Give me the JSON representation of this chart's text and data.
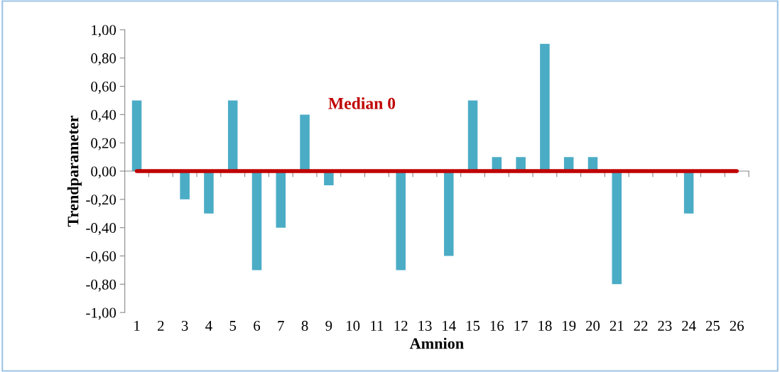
{
  "chart_data": {
    "type": "bar",
    "xlabel": "Amnion",
    "ylabel": "Trendparameter",
    "categories": [
      "1",
      "2",
      "3",
      "4",
      "5",
      "6",
      "7",
      "8",
      "9",
      "10",
      "11",
      "12",
      "13",
      "14",
      "15",
      "16",
      "17",
      "18",
      "19",
      "20",
      "21",
      "22",
      "23",
      "24",
      "25",
      "26"
    ],
    "values": [
      0.5,
      0,
      -0.2,
      -0.3,
      0.5,
      -0.7,
      -0.4,
      0.4,
      -0.1,
      0,
      0,
      -0.7,
      0,
      -0.6,
      0.5,
      0.1,
      0.1,
      0.9,
      0.1,
      0.1,
      -0.8,
      0,
      0,
      -0.3,
      0,
      0
    ],
    "color": "#4bacc6",
    "ylim": [
      -1,
      1
    ],
    "yticks": [
      {
        "value": -1,
        "label": "-1,00"
      },
      {
        "value": -0.8,
        "label": "-0,80"
      },
      {
        "value": -0.6,
        "label": "-0,60"
      },
      {
        "value": -0.4,
        "label": "-0,40"
      },
      {
        "value": -0.2,
        "label": "-0,20"
      },
      {
        "value": 0,
        "label": "0,00"
      },
      {
        "value": 0.2,
        "label": "0,20"
      },
      {
        "value": 0.4,
        "label": "0,40"
      },
      {
        "value": 0.6,
        "label": "0,60"
      },
      {
        "value": 0.8,
        "label": "0,80"
      },
      {
        "value": 1,
        "label": "1,00"
      }
    ],
    "ref_lines": [
      {
        "axis": "y",
        "value": 0,
        "label": "Median 0",
        "color": "#c00000"
      }
    ],
    "grid": false,
    "legend": false
  }
}
